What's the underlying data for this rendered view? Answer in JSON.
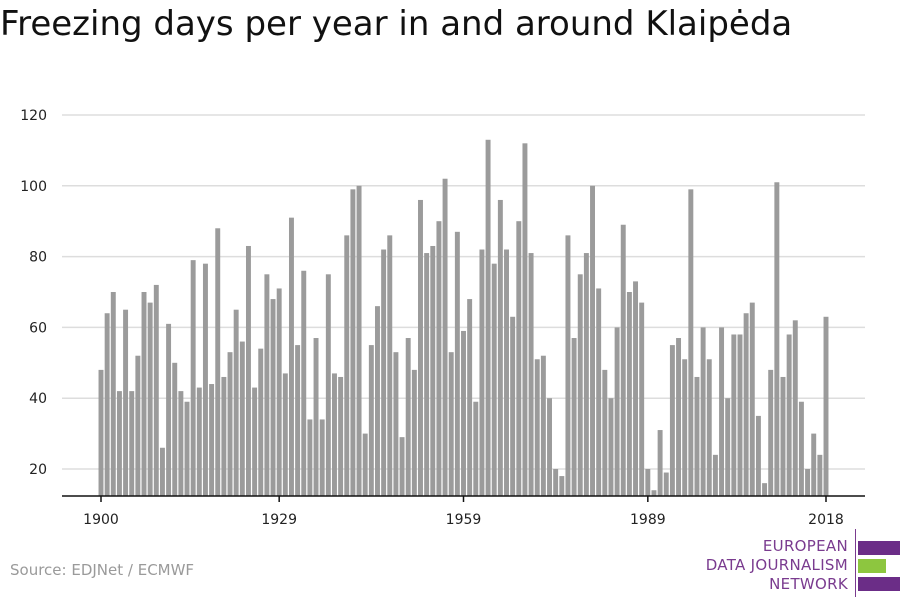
{
  "header": {
    "title": "Freezing days per year in and around Klaipėda"
  },
  "footer": {
    "source": "Source: EDJNet / ECMWF"
  },
  "logo": {
    "lines": [
      "EUROPEAN",
      "DATA JOURNALISM",
      "NETWORK"
    ],
    "colors": {
      "purple": "#6b2d87",
      "green": "#8dc63f",
      "text": "#7a3b8f"
    }
  },
  "colors": {
    "bar": "#9b9b9b",
    "grid": "#dddddd",
    "axis": "#111111",
    "text": "#222222"
  },
  "chart_data": {
    "type": "bar",
    "title": "Freezing days per year in and around Klaipėda",
    "xlabel": "",
    "ylabel": "",
    "xlim": [
      1900,
      2018
    ],
    "ylim": [
      12,
      122
    ],
    "yticks": [
      20,
      40,
      60,
      80,
      100,
      120
    ],
    "xticks": [
      1900,
      1929,
      1959,
      1989,
      2018
    ],
    "grid": true,
    "years": [
      1900,
      1901,
      1902,
      1903,
      1904,
      1905,
      1906,
      1907,
      1908,
      1909,
      1910,
      1911,
      1912,
      1913,
      1914,
      1915,
      1916,
      1917,
      1918,
      1919,
      1920,
      1921,
      1922,
      1923,
      1924,
      1925,
      1926,
      1927,
      1928,
      1929,
      1930,
      1931,
      1932,
      1933,
      1934,
      1935,
      1936,
      1937,
      1938,
      1939,
      1940,
      1941,
      1942,
      1943,
      1944,
      1945,
      1946,
      1947,
      1948,
      1949,
      1950,
      1951,
      1952,
      1953,
      1954,
      1955,
      1956,
      1957,
      1958,
      1959,
      1960,
      1961,
      1962,
      1963,
      1964,
      1965,
      1966,
      1967,
      1968,
      1969,
      1970,
      1971,
      1972,
      1973,
      1974,
      1975,
      1976,
      1977,
      1978,
      1979,
      1980,
      1981,
      1982,
      1983,
      1984,
      1985,
      1986,
      1987,
      1988,
      1989,
      1990,
      1991,
      1992,
      1993,
      1994,
      1995,
      1996,
      1997,
      1998,
      1999,
      2000,
      2001,
      2002,
      2003,
      2004,
      2005,
      2006,
      2007,
      2008,
      2009,
      2010,
      2011,
      2012,
      2013,
      2014,
      2015,
      2016,
      2017,
      2018
    ],
    "values": [
      48,
      64,
      70,
      42,
      65,
      42,
      52,
      70,
      67,
      72,
      26,
      61,
      50,
      42,
      39,
      79,
      43,
      78,
      44,
      88,
      46,
      53,
      65,
      56,
      83,
      43,
      54,
      75,
      68,
      71,
      47,
      91,
      55,
      76,
      34,
      57,
      34,
      75,
      47,
      46,
      86,
      99,
      100,
      30,
      55,
      66,
      82,
      86,
      53,
      29,
      57,
      48,
      96,
      81,
      83,
      90,
      102,
      53,
      87,
      59,
      68,
      39,
      82,
      113,
      78,
      96,
      82,
      63,
      90,
      112,
      81,
      51,
      52,
      40,
      20,
      18,
      86,
      57,
      75,
      81,
      100,
      71,
      48,
      40,
      60,
      89,
      70,
      73,
      67,
      20,
      14,
      31,
      19,
      55,
      57,
      51,
      99,
      46,
      60,
      51,
      24,
      60,
      40,
      58,
      58,
      64,
      67,
      35,
      16,
      48,
      101,
      46,
      58,
      62,
      39,
      20,
      30,
      24,
      63
    ]
  }
}
